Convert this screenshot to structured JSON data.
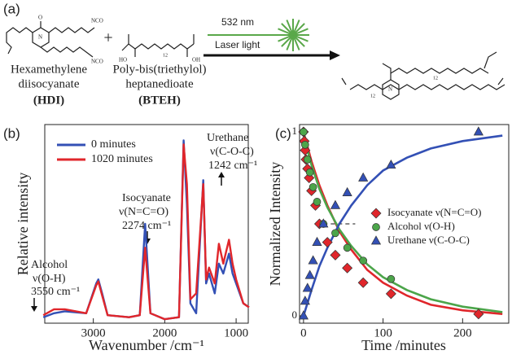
{
  "panel_a": {
    "label": "(a)",
    "plus": "+",
    "hdi_name": [
      "Hexamethylene",
      "diisocyanate"
    ],
    "hdi_abbr": "(HDI)",
    "bteh_name": [
      "Poly-bis(triethylol)",
      "heptanedioate"
    ],
    "bteh_abbr": "(BTEH)",
    "laser": [
      "532 nm",
      "Laser light"
    ],
    "atoms": {
      "nco": "NCO",
      "ho": "HO",
      "oh": "OH",
      "n": "N",
      "o": "O",
      "sub": "12"
    }
  },
  "chart_data": [
    {
      "type": "line",
      "label": "(b)",
      "xlabel": "Wavenumber /cm⁻¹",
      "ylabel": "Relative intensity",
      "x": [
        3700,
        3550,
        3400,
        3100,
        2960,
        2930,
        2870,
        2800,
        2500,
        2350,
        2274,
        2200,
        2000,
        1800,
        1735,
        1690,
        1640,
        1560,
        1460,
        1420,
        1380,
        1300,
        1242,
        1180,
        1100,
        1050,
        1000,
        900,
        820
      ],
      "series": [
        {
          "name": "0 minutes",
          "color": "#3350b5",
          "values": [
            0.03,
            0.05,
            0.06,
            0.05,
            0.2,
            0.22,
            0.14,
            0.04,
            0.03,
            0.04,
            0.5,
            0.05,
            0.02,
            0.03,
            0.92,
            0.6,
            0.1,
            0.05,
            0.72,
            0.2,
            0.25,
            0.15,
            0.3,
            0.25,
            0.35,
            0.25,
            0.2,
            0.1,
            0.08
          ]
        },
        {
          "name": "1020 minutes",
          "color": "#e0262b",
          "values": [
            0.04,
            0.07,
            0.07,
            0.05,
            0.19,
            0.21,
            0.13,
            0.04,
            0.03,
            0.04,
            0.38,
            0.05,
            0.02,
            0.03,
            0.9,
            0.7,
            0.12,
            0.15,
            0.7,
            0.22,
            0.28,
            0.2,
            0.4,
            0.3,
            0.42,
            0.3,
            0.22,
            0.1,
            0.08
          ]
        }
      ],
      "xlim": [
        3680,
        830
      ],
      "ylim": [
        0,
        1
      ],
      "xticks": [
        3000,
        2000,
        1000
      ],
      "annotations": [
        [
          "Urethane",
          "ν(C-O-C)",
          "1242 cm⁻¹"
        ],
        [
          "Isocyanate",
          "ν(N=C=O)",
          "2274 cm⁻¹"
        ],
        [
          "Alcohol",
          "ν(O-H)",
          "3550 cm⁻¹"
        ]
      ]
    },
    {
      "type": "scatter",
      "label": "(c)",
      "xlabel": "Time /minutes",
      "ylabel": "Normalized Intensity",
      "series": [
        {
          "name": "Isocyanate ν(N=C=O)",
          "color": "#e0262b",
          "marker": "diamond",
          "x": [
            0,
            1,
            2,
            3,
            5,
            7,
            10,
            15,
            20,
            30,
            40,
            55,
            75,
            110,
            220
          ],
          "values": [
            1.0,
            0.95,
            0.9,
            0.85,
            0.8,
            0.75,
            0.68,
            0.6,
            0.5,
            0.4,
            0.33,
            0.26,
            0.18,
            0.12,
            0.01
          ]
        },
        {
          "name": "Alcohol ν(O-H)",
          "color": "#4ca54a",
          "marker": "circle",
          "x": [
            0,
            2,
            5,
            8,
            12,
            17,
            25,
            40,
            55,
            75,
            110
          ],
          "values": [
            1.0,
            0.93,
            0.85,
            0.78,
            0.7,
            0.62,
            0.5,
            0.45,
            0.37,
            0.3,
            0.2
          ]
        },
        {
          "name": "Urethane ν(C-O-C)",
          "color": "#3350b5",
          "marker": "triangle",
          "x": [
            0,
            2,
            5,
            8,
            12,
            17,
            25,
            40,
            55,
            75,
            110,
            220
          ],
          "values": [
            0.0,
            0.08,
            0.15,
            0.22,
            0.3,
            0.4,
            0.5,
            0.6,
            0.67,
            0.75,
            0.82,
            1.0
          ]
        }
      ],
      "fit_x": [
        0,
        5,
        10,
        20,
        30,
        45,
        60,
        80,
        100,
        130,
        160,
        200,
        250
      ],
      "fits": [
        {
          "color": "#e0262b",
          "values": [
            1,
            0.92,
            0.84,
            0.71,
            0.6,
            0.46,
            0.36,
            0.25,
            0.18,
            0.11,
            0.06,
            0.03,
            0.01
          ]
        },
        {
          "color": "#4ca54a",
          "values": [
            1,
            0.9,
            0.82,
            0.69,
            0.59,
            0.47,
            0.38,
            0.28,
            0.21,
            0.14,
            0.09,
            0.05,
            0.02
          ]
        },
        {
          "color": "#3350b5",
          "values": [
            0,
            0.07,
            0.14,
            0.27,
            0.37,
            0.5,
            0.6,
            0.71,
            0.79,
            0.86,
            0.91,
            0.95,
            0.98
          ]
        }
      ],
      "hline": {
        "y": 0.5,
        "x": [
          25,
          65
        ]
      },
      "xlim": [
        -5,
        258
      ],
      "ylim": [
        -0.04,
        1.04
      ],
      "xticks": [
        0,
        100,
        200
      ],
      "yticks": [
        0,
        1
      ]
    }
  ]
}
